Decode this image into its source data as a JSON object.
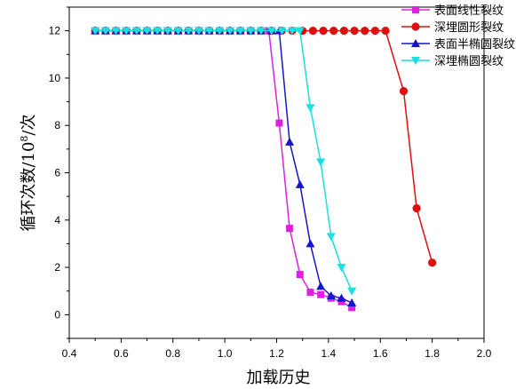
{
  "chart_data": {
    "type": "line",
    "title": "",
    "xlabel": "加载历史",
    "ylabel_main": "循环次数/10",
    "ylabel_exp": "8",
    "ylabel_unit": "/次",
    "xlim": [
      0.4,
      2.0
    ],
    "ylim": [
      -1,
      13
    ],
    "xticks": [
      0.4,
      0.6,
      0.8,
      1.0,
      1.2,
      1.4,
      1.6,
      1.8,
      2.0
    ],
    "xtick_labels": [
      "0.4",
      "0.6",
      "0.8",
      "1.0",
      "1.2",
      "1.4",
      "1.6",
      "1.8",
      "2.0"
    ],
    "yticks": [
      0,
      2,
      4,
      6,
      8,
      10,
      12
    ],
    "ytick_labels": [
      "0",
      "2",
      "4",
      "6",
      "8",
      "10",
      "12"
    ],
    "grid": false,
    "legend_position": "top-right",
    "series": [
      {
        "name": "表面线性裂纹",
        "color": "#e020e0",
        "marker": "square",
        "x": [
          0.5,
          0.54,
          0.58,
          0.62,
          0.66,
          0.7,
          0.74,
          0.78,
          0.82,
          0.86,
          0.9,
          0.94,
          0.98,
          1.02,
          1.06,
          1.1,
          1.14,
          1.17,
          1.21,
          1.25,
          1.29,
          1.33,
          1.37,
          1.41,
          1.45,
          1.49
        ],
        "y": [
          12,
          12,
          12,
          12,
          12,
          12,
          12,
          12,
          12,
          12,
          12,
          12,
          12,
          12,
          12,
          12,
          12,
          12,
          8.1,
          3.65,
          1.7,
          0.95,
          0.85,
          0.7,
          0.55,
          0.3
        ]
      },
      {
        "name": "深埋圆形裂纹",
        "color": "#dd1010",
        "marker": "circle",
        "x": [
          0.5,
          0.54,
          0.58,
          0.62,
          0.66,
          0.7,
          0.74,
          0.78,
          0.82,
          0.86,
          0.9,
          0.94,
          0.98,
          1.02,
          1.06,
          1.1,
          1.14,
          1.18,
          1.22,
          1.26,
          1.3,
          1.34,
          1.38,
          1.42,
          1.46,
          1.5,
          1.54,
          1.58,
          1.62,
          1.69,
          1.74,
          1.8
        ],
        "y": [
          12,
          12,
          12,
          12,
          12,
          12,
          12,
          12,
          12,
          12,
          12,
          12,
          12,
          12,
          12,
          12,
          12,
          12,
          12,
          12,
          12,
          12,
          12,
          12,
          12,
          12,
          12,
          12,
          12,
          9.45,
          4.5,
          2.2
        ]
      },
      {
        "name": "表面半椭圆裂纹",
        "color": "#1515c8",
        "marker": "triangle-up",
        "x": [
          0.5,
          0.54,
          0.58,
          0.62,
          0.66,
          0.7,
          0.74,
          0.78,
          0.82,
          0.86,
          0.9,
          0.94,
          0.98,
          1.02,
          1.06,
          1.1,
          1.14,
          1.18,
          1.21,
          1.25,
          1.29,
          1.33,
          1.37,
          1.41,
          1.45,
          1.49
        ],
        "y": [
          12,
          12,
          12,
          12,
          12,
          12,
          12,
          12,
          12,
          12,
          12,
          12,
          12,
          12,
          12,
          12,
          12,
          12,
          12,
          7.3,
          5.5,
          3.0,
          1.2,
          0.8,
          0.7,
          0.5
        ]
      },
      {
        "name": "深埋椭圆裂纹",
        "color": "#18e0e0",
        "marker": "triangle-down",
        "x": [
          0.5,
          0.54,
          0.58,
          0.62,
          0.66,
          0.7,
          0.74,
          0.78,
          0.82,
          0.86,
          0.9,
          0.94,
          0.98,
          1.02,
          1.06,
          1.1,
          1.14,
          1.18,
          1.22,
          1.26,
          1.29,
          1.33,
          1.37,
          1.41,
          1.45,
          1.49
        ],
        "y": [
          12,
          12,
          12,
          12,
          12,
          12,
          12,
          12,
          12,
          12,
          12,
          12,
          12,
          12,
          12,
          12,
          12,
          12,
          12,
          12,
          12,
          8.75,
          6.45,
          3.3,
          2.0,
          1.0
        ]
      }
    ]
  }
}
